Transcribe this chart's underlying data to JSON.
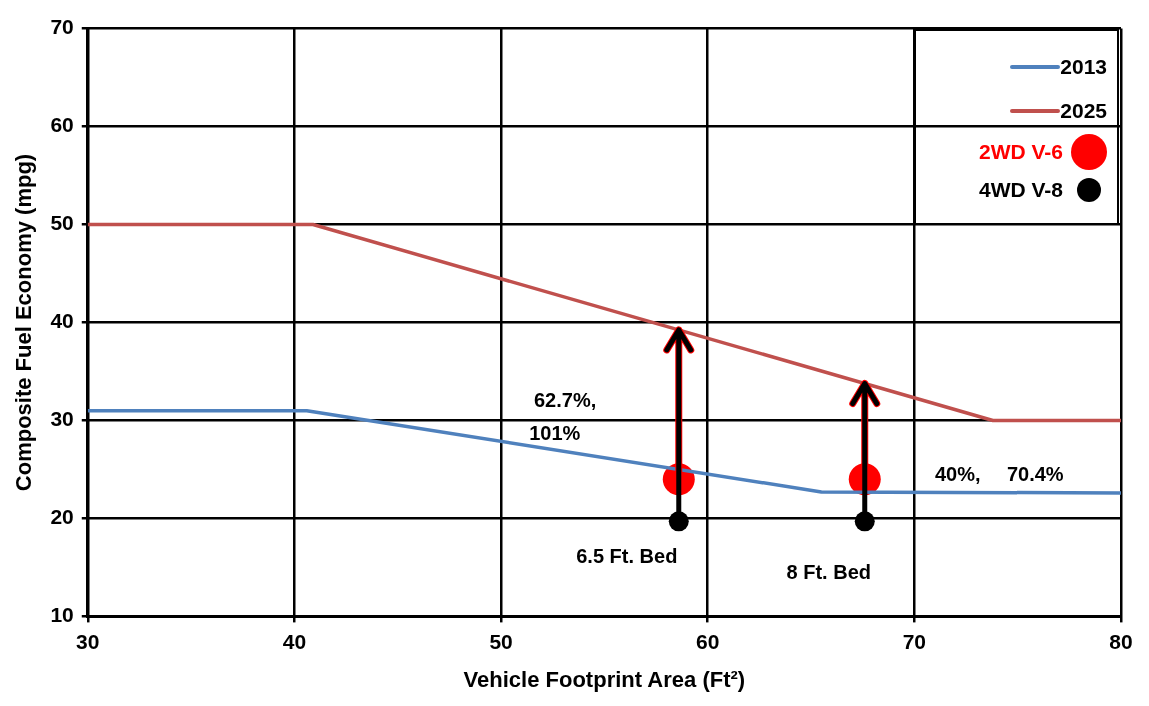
{
  "chart_data": {
    "type": "line",
    "xlabel": "Vehicle Footprint Area (Ft²)",
    "ylabel": "Composite Fuel Economy (mpg)",
    "xlim": [
      30,
      80
    ],
    "xticks": [
      30,
      40,
      50,
      60,
      70,
      80
    ],
    "ylim": [
      10,
      70
    ],
    "yticks": [
      10,
      20,
      30,
      40,
      50,
      60,
      70
    ],
    "grid": true,
    "legend": "top right",
    "series": [
      {
        "name": "2013",
        "color": "#4f81bd",
        "x": [
          30,
          40.6,
          65.5,
          80
        ],
        "values": [
          31,
          31,
          22.7,
          22.6
        ]
      },
      {
        "name": "2025",
        "color": "#c0504d",
        "x": [
          30,
          40.9,
          73.8,
          80
        ],
        "values": [
          50,
          50,
          30,
          30
        ]
      },
      {
        "name": "2WD V-6",
        "type": "scatter",
        "color": "#ff0000",
        "x": [
          58.6,
          67.6
        ],
        "values": [
          24,
          24
        ],
        "marker": "circle"
      },
      {
        "name": "4WD V-8",
        "type": "scatter",
        "color": "#000000",
        "x": [
          58.6,
          67.6
        ],
        "values": [
          19.7,
          19.7
        ],
        "marker": "circle"
      }
    ],
    "annotations": [
      "62.7%,",
      "101%",
      "40%,",
      "70.4%",
      {
        "text": "6.5 Ft. Bed",
        "x": 58.6,
        "y": 19.7
      },
      {
        "text": "8 Ft. Bed",
        "x": 67.6,
        "y": 19.7
      }
    ]
  }
}
